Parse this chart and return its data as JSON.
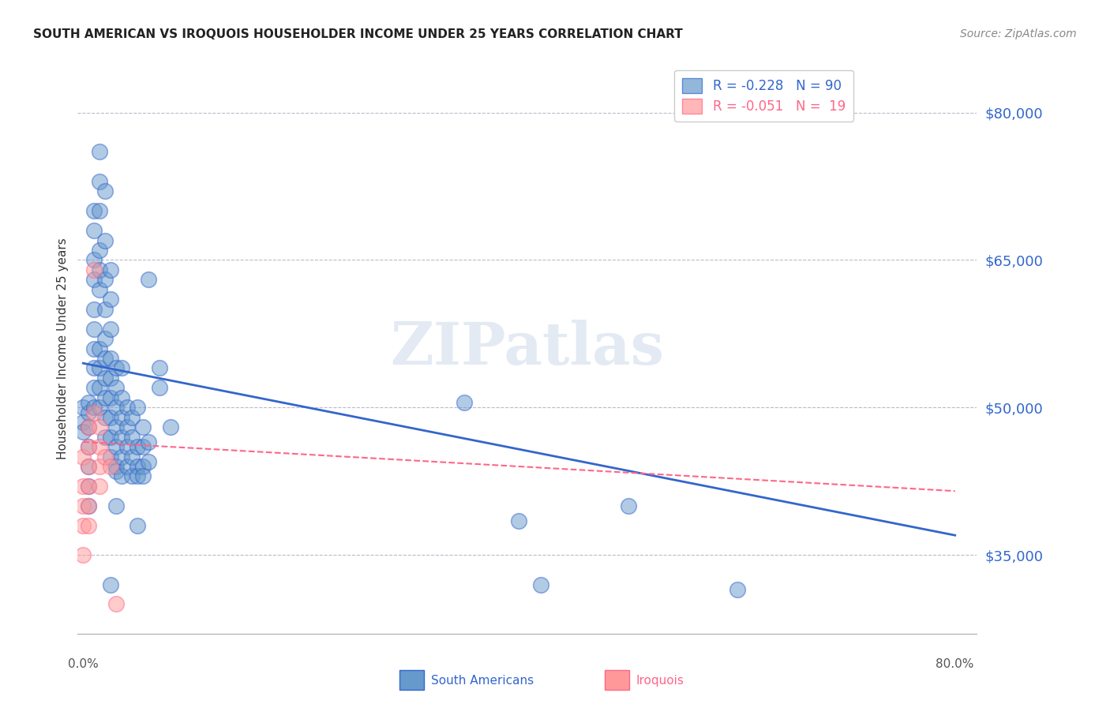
{
  "title": "SOUTH AMERICAN VS IROQUOIS HOUSEHOLDER INCOME UNDER 25 YEARS CORRELATION CHART",
  "source": "Source: ZipAtlas.com",
  "ylabel": "Householder Income Under 25 years",
  "y_ticks": [
    35000,
    50000,
    65000,
    80000
  ],
  "y_tick_labels": [
    "$35,000",
    "$50,000",
    "$65,000",
    "$80,000"
  ],
  "ylim": [
    27000,
    85000
  ],
  "xlim": [
    -0.005,
    0.82
  ],
  "sa_color": "#6699CC",
  "iq_color": "#FF9999",
  "sa_line_color": "#3366CC",
  "iq_line_color": "#FF6688",
  "watermark": "ZIPatlas",
  "sa_line_x": [
    0.0,
    0.8
  ],
  "sa_line_y": [
    54500,
    37000
  ],
  "iq_line_x": [
    0.0,
    0.8
  ],
  "iq_line_y": [
    46500,
    41500
  ],
  "sa_points": [
    [
      0.0,
      48500
    ],
    [
      0.0,
      47500
    ],
    [
      0.0,
      50000
    ],
    [
      0.005,
      49500
    ],
    [
      0.005,
      50500
    ],
    [
      0.005,
      48000
    ],
    [
      0.005,
      46000
    ],
    [
      0.005,
      44000
    ],
    [
      0.005,
      42000
    ],
    [
      0.005,
      40000
    ],
    [
      0.01,
      50000
    ],
    [
      0.01,
      52000
    ],
    [
      0.01,
      54000
    ],
    [
      0.01,
      56000
    ],
    [
      0.01,
      58000
    ],
    [
      0.01,
      60000
    ],
    [
      0.01,
      63000
    ],
    [
      0.01,
      65000
    ],
    [
      0.01,
      68000
    ],
    [
      0.01,
      70000
    ],
    [
      0.015,
      50000
    ],
    [
      0.015,
      52000
    ],
    [
      0.015,
      54000
    ],
    [
      0.015,
      56000
    ],
    [
      0.015,
      62000
    ],
    [
      0.015,
      64000
    ],
    [
      0.015,
      66000
    ],
    [
      0.015,
      70000
    ],
    [
      0.015,
      73000
    ],
    [
      0.015,
      76000
    ],
    [
      0.02,
      47000
    ],
    [
      0.02,
      49000
    ],
    [
      0.02,
      51000
    ],
    [
      0.02,
      53000
    ],
    [
      0.02,
      55000
    ],
    [
      0.02,
      57000
    ],
    [
      0.02,
      60000
    ],
    [
      0.02,
      63000
    ],
    [
      0.02,
      67000
    ],
    [
      0.02,
      72000
    ],
    [
      0.025,
      45000
    ],
    [
      0.025,
      47000
    ],
    [
      0.025,
      49000
    ],
    [
      0.025,
      51000
    ],
    [
      0.025,
      53000
    ],
    [
      0.025,
      55000
    ],
    [
      0.025,
      58000
    ],
    [
      0.025,
      61000
    ],
    [
      0.025,
      32000
    ],
    [
      0.025,
      64000
    ],
    [
      0.03,
      44000
    ],
    [
      0.03,
      46000
    ],
    [
      0.03,
      48000
    ],
    [
      0.03,
      50000
    ],
    [
      0.03,
      52000
    ],
    [
      0.03,
      54000
    ],
    [
      0.03,
      43500
    ],
    [
      0.03,
      40000
    ],
    [
      0.035,
      43000
    ],
    [
      0.035,
      45000
    ],
    [
      0.035,
      47000
    ],
    [
      0.035,
      49000
    ],
    [
      0.035,
      51000
    ],
    [
      0.035,
      54000
    ],
    [
      0.04,
      44000
    ],
    [
      0.04,
      46000
    ],
    [
      0.04,
      48000
    ],
    [
      0.04,
      50000
    ],
    [
      0.045,
      43000
    ],
    [
      0.045,
      45000
    ],
    [
      0.045,
      47000
    ],
    [
      0.045,
      49000
    ],
    [
      0.05,
      44000
    ],
    [
      0.05,
      46000
    ],
    [
      0.05,
      50000
    ],
    [
      0.05,
      43000
    ],
    [
      0.05,
      38000
    ],
    [
      0.055,
      44000
    ],
    [
      0.055,
      46000
    ],
    [
      0.055,
      48000
    ],
    [
      0.055,
      43000
    ],
    [
      0.06,
      44500
    ],
    [
      0.06,
      46500
    ],
    [
      0.06,
      63000
    ],
    [
      0.07,
      52000
    ],
    [
      0.07,
      54000
    ],
    [
      0.08,
      48000
    ],
    [
      0.35,
      50500
    ],
    [
      0.4,
      38500
    ],
    [
      0.42,
      32000
    ],
    [
      0.5,
      40000
    ],
    [
      0.6,
      31500
    ]
  ],
  "iq_points": [
    [
      0.0,
      45000
    ],
    [
      0.0,
      42000
    ],
    [
      0.0,
      40000
    ],
    [
      0.0,
      38000
    ],
    [
      0.0,
      35000
    ],
    [
      0.005,
      48000
    ],
    [
      0.005,
      46000
    ],
    [
      0.005,
      44000
    ],
    [
      0.005,
      42000
    ],
    [
      0.005,
      40000
    ],
    [
      0.005,
      38000
    ],
    [
      0.01,
      49500
    ],
    [
      0.01,
      64000
    ],
    [
      0.015,
      46000
    ],
    [
      0.015,
      48000
    ],
    [
      0.015,
      44000
    ],
    [
      0.015,
      42000
    ],
    [
      0.02,
      45000
    ],
    [
      0.025,
      44000
    ],
    [
      0.03,
      30000
    ]
  ]
}
